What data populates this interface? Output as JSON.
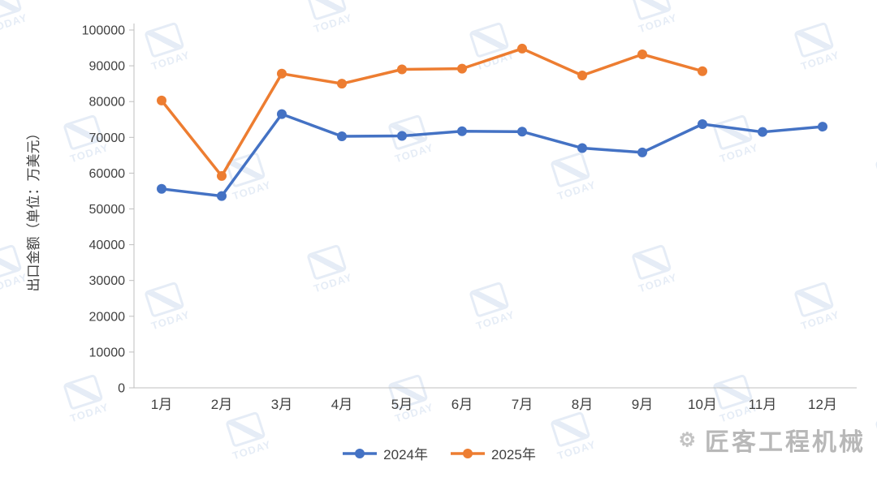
{
  "chart_data": {
    "type": "line",
    "title": "",
    "xlabel": "",
    "ylabel": "出口金额（单位：万美元）",
    "categories": [
      "1月",
      "2月",
      "3月",
      "4月",
      "5月",
      "6月",
      "7月",
      "8月",
      "9月",
      "10月",
      "11月",
      "12月"
    ],
    "series": [
      {
        "name": "2024年",
        "color": "#4472C4",
        "values": [
          55600,
          53600,
          76500,
          70300,
          70400,
          71700,
          71600,
          67000,
          65800,
          73700,
          71500,
          73000
        ]
      },
      {
        "name": "2025年",
        "color": "#ED7D31",
        "values": [
          80300,
          59200,
          87800,
          85000,
          89000,
          89200,
          94800,
          87300,
          93200,
          88500,
          null,
          null
        ]
      }
    ],
    "ylim": [
      0,
      100000
    ],
    "yticks": [
      0,
      10000,
      20000,
      30000,
      40000,
      50000,
      60000,
      70000,
      80000,
      90000,
      100000
    ],
    "grid": false,
    "legend_position": "bottom",
    "marker": "circle"
  },
  "watermark": {
    "logo_text": "TODAY",
    "brand_text": "匠客工程机械"
  }
}
